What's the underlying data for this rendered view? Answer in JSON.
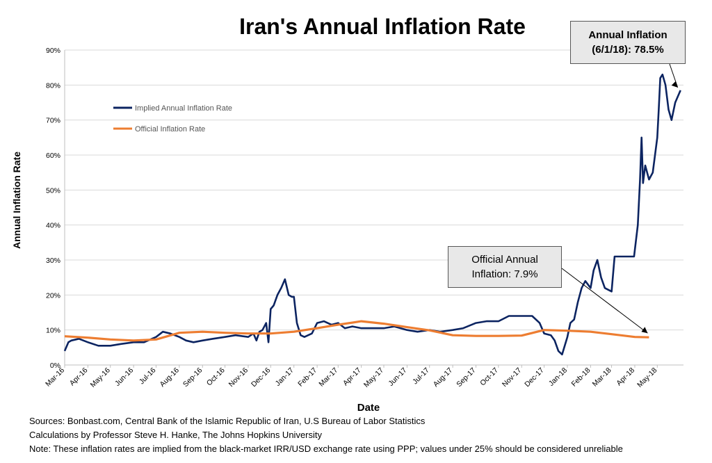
{
  "chart_data": {
    "type": "line",
    "title": "Iran's Annual Inflation Rate",
    "xlabel": "Date",
    "ylabel": "Annual Inflation Rate",
    "ylim": [
      0,
      90
    ],
    "yticks": [
      "0%",
      "10%",
      "20%",
      "30%",
      "40%",
      "50%",
      "60%",
      "70%",
      "80%",
      "90%"
    ],
    "x_tick_labels": [
      "Mar-16",
      "Apr-16",
      "May-16",
      "Jun-16",
      "Jul-16",
      "Aug-16",
      "Sep-16",
      "Oct-16",
      "Nov-16",
      "Dec-16",
      "Jan-17",
      "Feb-17",
      "Mar-17",
      "Apr-17",
      "May-17",
      "Jun-17",
      "Jul-17",
      "Aug-17",
      "Sep-17",
      "Oct-17",
      "Nov-17",
      "Dec-17",
      "Jan-18",
      "Feb-18",
      "Mar-18",
      "Apr-18",
      "May-18"
    ],
    "grid": true,
    "legend_position": "upper-left",
    "series": [
      {
        "name": "Implied Annual Inflation Rate",
        "color": "#0c2461",
        "x": [
          "2016-03-01",
          "2016-03-06",
          "2016-03-10",
          "2016-03-20",
          "2016-04-01",
          "2016-04-15",
          "2016-05-01",
          "2016-05-15",
          "2016-06-01",
          "2016-06-15",
          "2016-07-01",
          "2016-07-10",
          "2016-07-20",
          "2016-08-01",
          "2016-08-10",
          "2016-08-20",
          "2016-09-01",
          "2016-09-15",
          "2016-10-01",
          "2016-10-15",
          "2016-11-01",
          "2016-11-08",
          "2016-11-12",
          "2016-11-16",
          "2016-11-20",
          "2016-11-25",
          "2016-11-28",
          "2016-12-01",
          "2016-12-05",
          "2016-12-10",
          "2016-12-15",
          "2016-12-20",
          "2016-12-25",
          "2016-12-29",
          "2017-01-01",
          "2017-01-05",
          "2017-01-10",
          "2017-01-15",
          "2017-01-20",
          "2017-01-25",
          "2017-02-01",
          "2017-02-10",
          "2017-02-20",
          "2017-03-01",
          "2017-03-10",
          "2017-03-20",
          "2017-04-01",
          "2017-04-15",
          "2017-05-01",
          "2017-05-15",
          "2017-06-01",
          "2017-06-15",
          "2017-07-01",
          "2017-07-15",
          "2017-08-01",
          "2017-08-15",
          "2017-09-01",
          "2017-09-15",
          "2017-10-01",
          "2017-10-15",
          "2017-11-01",
          "2017-11-15",
          "2017-11-25",
          "2017-12-01",
          "2017-12-10",
          "2017-12-15",
          "2017-12-20",
          "2017-12-25",
          "2018-01-01",
          "2018-01-05",
          "2018-01-10",
          "2018-01-15",
          "2018-01-20",
          "2018-01-25",
          "2018-02-01",
          "2018-02-05",
          "2018-02-10",
          "2018-02-15",
          "2018-02-20",
          "2018-03-01",
          "2018-03-05",
          "2018-03-10",
          "2018-03-20",
          "2018-03-31",
          "2018-04-05",
          "2018-04-08",
          "2018-04-10",
          "2018-04-12",
          "2018-04-15",
          "2018-04-20",
          "2018-04-25",
          "2018-05-01",
          "2018-05-03",
          "2018-05-05",
          "2018-05-08",
          "2018-05-12",
          "2018-05-16",
          "2018-05-20",
          "2018-05-25",
          "2018-06-01"
        ],
        "values": [
          4,
          6.5,
          7,
          7.5,
          6.5,
          5.5,
          5.5,
          6,
          6.5,
          6.5,
          8,
          9.5,
          9,
          8,
          7,
          6.5,
          7,
          7.5,
          8,
          8.5,
          8,
          9,
          7,
          9.5,
          10,
          12,
          6.5,
          16,
          17,
          20,
          22,
          24.5,
          20,
          19.5,
          19.5,
          12,
          8.5,
          8,
          8.5,
          9,
          12,
          12.5,
          11.5,
          12,
          10.5,
          11,
          10.5,
          10.5,
          10.5,
          11,
          10,
          9.5,
          10,
          9.5,
          10,
          10.5,
          12,
          12.5,
          12.5,
          14,
          14,
          14,
          12,
          9,
          8.5,
          7,
          4,
          3,
          8,
          12,
          13,
          18,
          22,
          24,
          22,
          27,
          30,
          25,
          22,
          21,
          31,
          31,
          31,
          31,
          40,
          53,
          65,
          52,
          57,
          53,
          55,
          65,
          73,
          82,
          83,
          80,
          73,
          70,
          75,
          78.5
        ]
      },
      {
        "name": "Official Inflation Rate",
        "color": "#ed7d31",
        "x": [
          "2016-03-01",
          "2016-04-01",
          "2016-05-01",
          "2016-06-01",
          "2016-07-01",
          "2016-08-01",
          "2016-09-01",
          "2016-10-01",
          "2016-11-01",
          "2016-12-01",
          "2017-01-01",
          "2017-02-01",
          "2017-03-01",
          "2017-04-01",
          "2017-05-01",
          "2017-06-01",
          "2017-07-01",
          "2017-08-01",
          "2017-09-01",
          "2017-10-01",
          "2017-11-01",
          "2017-12-01",
          "2018-01-01",
          "2018-02-01",
          "2018-03-01",
          "2018-04-01",
          "2018-04-20"
        ],
        "values": [
          8.2,
          7.8,
          7.3,
          7.0,
          7.3,
          9.2,
          9.5,
          9.2,
          9.0,
          9.0,
          9.5,
          10.5,
          11.5,
          12.5,
          11.8,
          10.8,
          9.9,
          8.5,
          8.3,
          8.3,
          8.4,
          10.0,
          9.8,
          9.5,
          8.8,
          8.0,
          7.9
        ]
      }
    ],
    "annotations": [
      {
        "lines": [
          "Annual Inflation",
          "(6/1/18): 78.5%"
        ]
      },
      {
        "lines": [
          "Official Annual",
          "Inflation: 7.9%"
        ]
      }
    ]
  },
  "footer": {
    "sources": "Sources: Bonbast.com, Central Bank of the Islamic Republic of Iran, U.S Bureau of Labor Statistics",
    "calculations": "Calculations by Professor Steve H. Hanke, The Johns Hopkins University",
    "note": "Note: These inflation rates are implied from the black-market IRR/USD exchange rate using PPP; values under 25% should be considered unreliable"
  }
}
